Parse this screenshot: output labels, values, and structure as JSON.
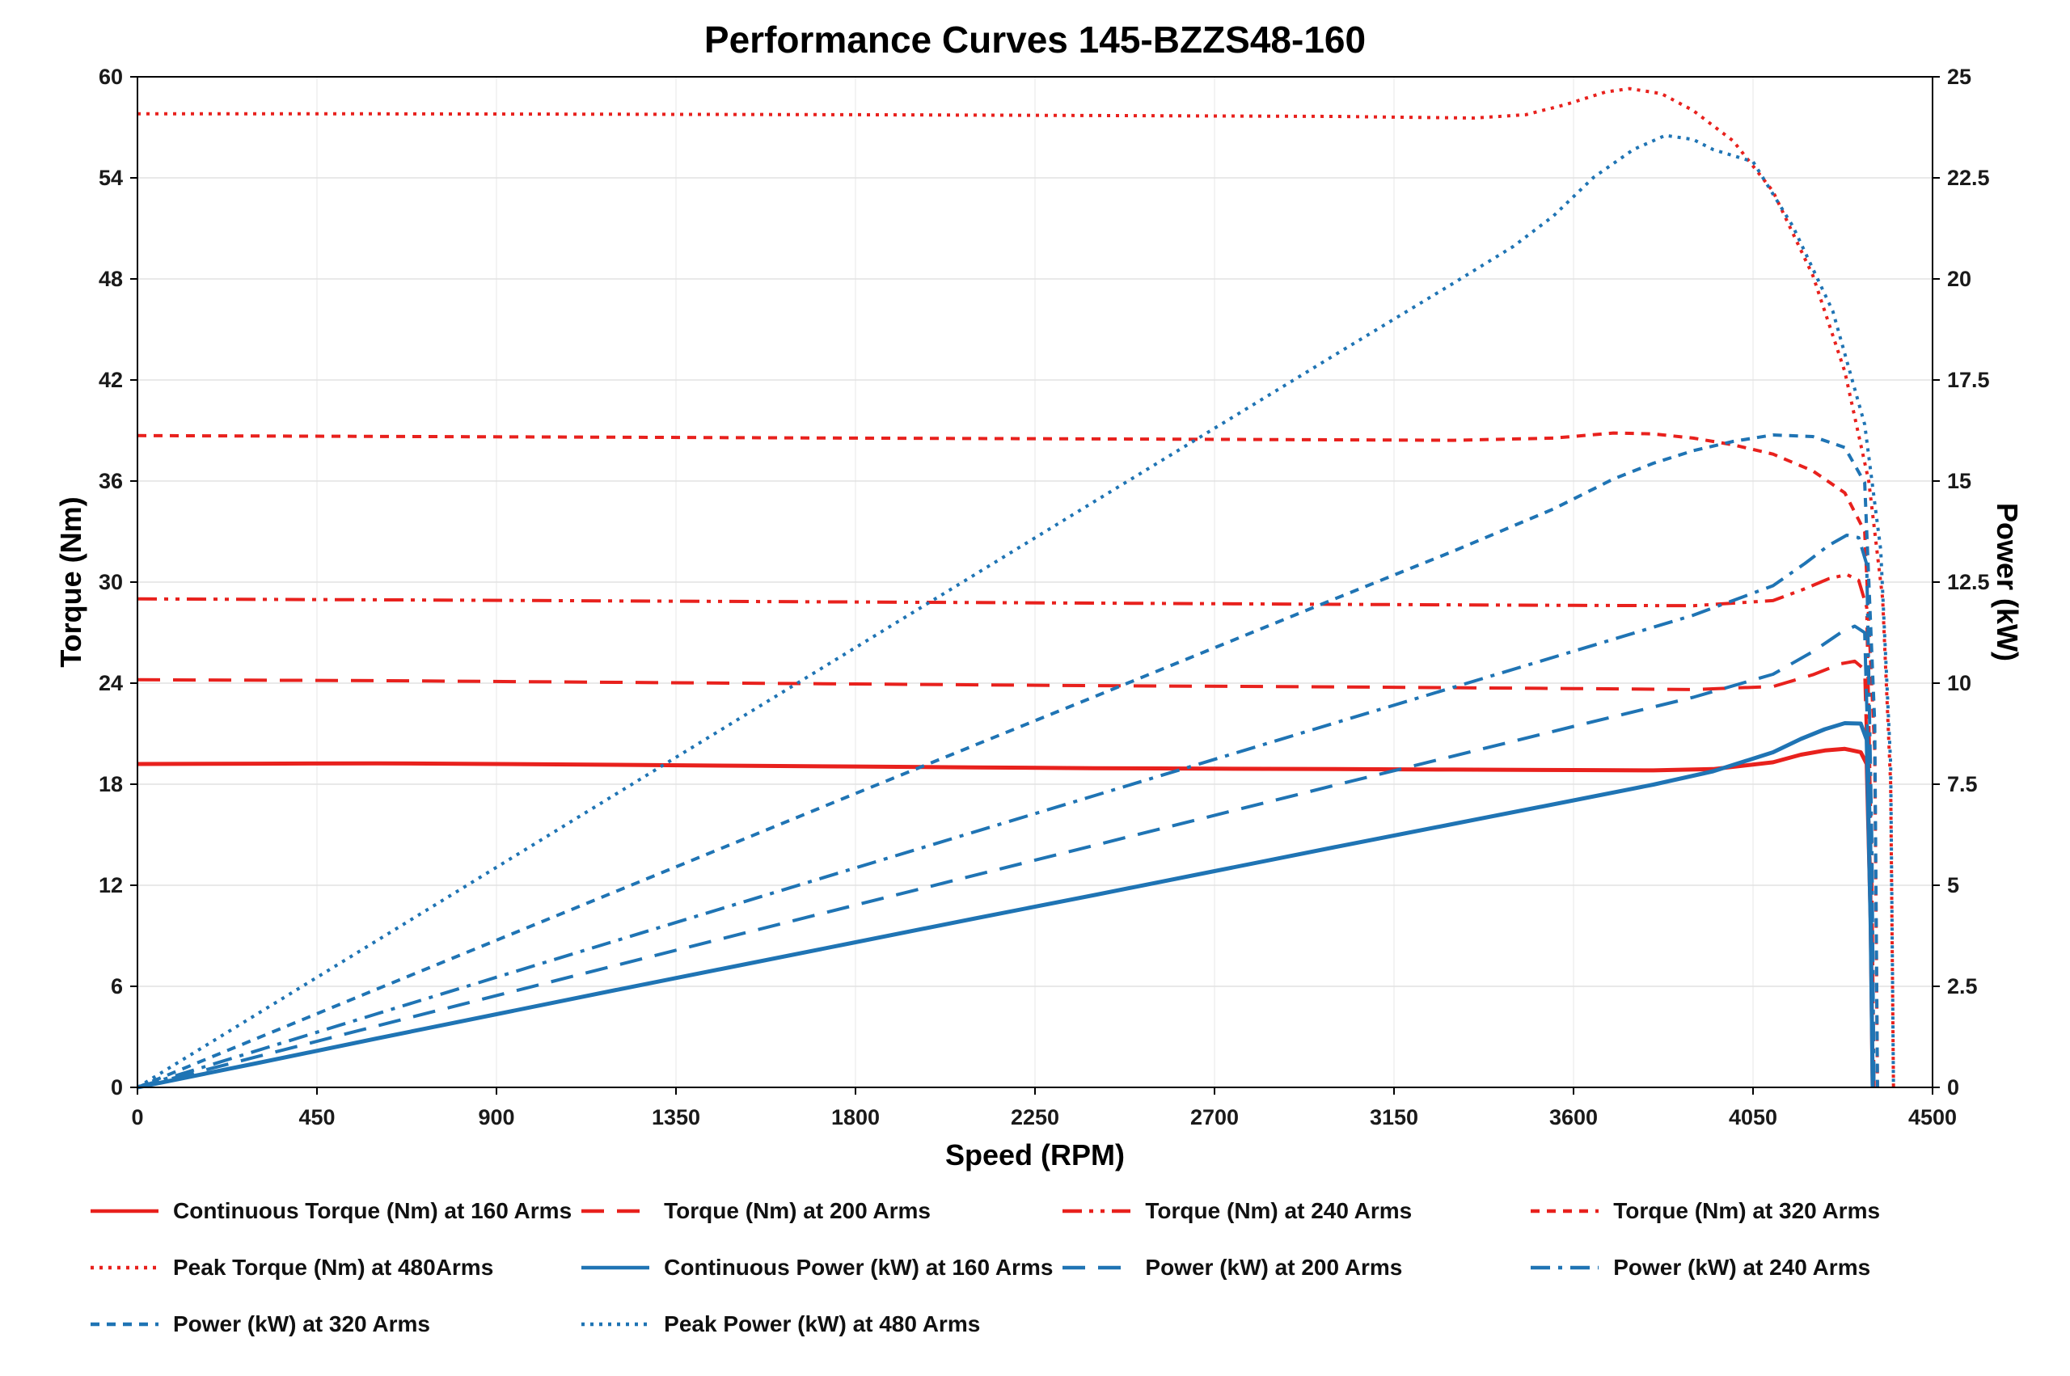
{
  "chart_data": {
    "type": "line",
    "title": "Performance Curves 145-BZZS48-160",
    "xlabel": "Speed (RPM)",
    "ylabel_left": "Torque (Nm)",
    "ylabel_right": "Power (kW)",
    "xlim": [
      0,
      4500
    ],
    "ylim_left": [
      0,
      60
    ],
    "ylim_right": [
      0,
      25
    ],
    "xticks": [
      0,
      450,
      900,
      1350,
      1800,
      2250,
      2700,
      3150,
      3600,
      4050,
      4500
    ],
    "yticks_left": [
      0,
      6,
      12,
      18,
      24,
      30,
      36,
      42,
      48,
      54,
      60
    ],
    "yticks_right": [
      0,
      2.5,
      5,
      7.5,
      10,
      12.5,
      15,
      17.5,
      20,
      22.5,
      25
    ],
    "grid": "on",
    "legend_position": "bottom",
    "style": {
      "torque_color": "#e8211d",
      "power_color": "#1f74b4",
      "hgrid_color": "#e2e2e2",
      "vgrid_color": "#efefef",
      "axis_color": "#000000"
    },
    "series": [
      {
        "id": "continuous-torque-160",
        "name": "Continuous Torque (Nm) at 160 Arms",
        "axis": "left",
        "color": "#e8211d",
        "dash": "",
        "width": 5,
        "points": [
          [
            0,
            19.2
          ],
          [
            300,
            19.22
          ],
          [
            600,
            19.24
          ],
          [
            900,
            19.2
          ],
          [
            1200,
            19.15
          ],
          [
            1500,
            19.1
          ],
          [
            1800,
            19.05
          ],
          [
            2100,
            19.0
          ],
          [
            2400,
            18.95
          ],
          [
            2700,
            18.92
          ],
          [
            3000,
            18.9
          ],
          [
            3300,
            18.87
          ],
          [
            3600,
            18.84
          ],
          [
            3800,
            18.82
          ],
          [
            3950,
            18.9
          ],
          [
            4100,
            19.3
          ],
          [
            4170,
            19.75
          ],
          [
            4230,
            20.0
          ],
          [
            4280,
            20.1
          ],
          [
            4320,
            19.9
          ],
          [
            4335,
            19.2
          ],
          [
            4345,
            10
          ],
          [
            4350,
            0
          ]
        ]
      },
      {
        "id": "torque-200",
        "name": "Torque (Nm) at 200 Arms",
        "axis": "left",
        "color": "#e8211d",
        "dash": "28 16",
        "width": 4,
        "points": [
          [
            0,
            24.2
          ],
          [
            600,
            24.15
          ],
          [
            1200,
            24.05
          ],
          [
            1800,
            23.95
          ],
          [
            2400,
            23.85
          ],
          [
            3000,
            23.78
          ],
          [
            3600,
            23.68
          ],
          [
            3900,
            23.62
          ],
          [
            4100,
            23.8
          ],
          [
            4200,
            24.5
          ],
          [
            4270,
            25.15
          ],
          [
            4305,
            25.3
          ],
          [
            4330,
            24.8
          ],
          [
            4345,
            12
          ],
          [
            4350,
            0
          ]
        ]
      },
      {
        "id": "torque-240",
        "name": "Torque (Nm) at 240 Arms",
        "axis": "left",
        "color": "#e8211d",
        "dash": "24 9 5 9 5 9",
        "width": 4,
        "points": [
          [
            0,
            29.0
          ],
          [
            600,
            28.95
          ],
          [
            1200,
            28.88
          ],
          [
            1800,
            28.82
          ],
          [
            2400,
            28.75
          ],
          [
            3000,
            28.68
          ],
          [
            3600,
            28.62
          ],
          [
            3900,
            28.6
          ],
          [
            4100,
            28.9
          ],
          [
            4180,
            29.6
          ],
          [
            4240,
            30.2
          ],
          [
            4285,
            30.45
          ],
          [
            4315,
            30.1
          ],
          [
            4335,
            28.5
          ],
          [
            4348,
            12
          ],
          [
            4353,
            0
          ]
        ]
      },
      {
        "id": "torque-320",
        "name": "Torque (Nm) at 320 Arms",
        "axis": "left",
        "color": "#e8211d",
        "dash": "11 9",
        "width": 4,
        "points": [
          [
            0,
            38.7
          ],
          [
            600,
            38.65
          ],
          [
            1200,
            38.6
          ],
          [
            1800,
            38.55
          ],
          [
            2400,
            38.5
          ],
          [
            3000,
            38.45
          ],
          [
            3300,
            38.42
          ],
          [
            3550,
            38.55
          ],
          [
            3700,
            38.85
          ],
          [
            3800,
            38.8
          ],
          [
            3900,
            38.55
          ],
          [
            4000,
            38.15
          ],
          [
            4100,
            37.6
          ],
          [
            4200,
            36.6
          ],
          [
            4280,
            35.3
          ],
          [
            4330,
            33
          ],
          [
            4355,
            20
          ],
          [
            4362,
            0
          ]
        ]
      },
      {
        "id": "peak-torque-480",
        "name": "Peak Torque (Nm) at 480Arms",
        "axis": "left",
        "color": "#e8211d",
        "dash": "4 7",
        "width": 4,
        "points": [
          [
            0,
            57.8
          ],
          [
            600,
            57.8
          ],
          [
            1200,
            57.78
          ],
          [
            1800,
            57.75
          ],
          [
            2400,
            57.7
          ],
          [
            3000,
            57.65
          ],
          [
            3350,
            57.55
          ],
          [
            3480,
            57.75
          ],
          [
            3580,
            58.35
          ],
          [
            3680,
            59.1
          ],
          [
            3740,
            59.3
          ],
          [
            3820,
            59.0
          ],
          [
            3900,
            58.0
          ],
          [
            4000,
            56.2
          ],
          [
            4100,
            53.2
          ],
          [
            4200,
            48.2
          ],
          [
            4280,
            42.5
          ],
          [
            4340,
            36
          ],
          [
            4375,
            29
          ],
          [
            4395,
            18
          ],
          [
            4402,
            0
          ]
        ]
      },
      {
        "id": "continuous-power-160",
        "name": "Continuous Power (kW) at 160 Arms",
        "axis": "right",
        "color": "#1f74b4",
        "dash": "",
        "width": 5,
        "points": [
          [
            0,
            0
          ],
          [
            300,
            0.6
          ],
          [
            600,
            1.21
          ],
          [
            900,
            1.81
          ],
          [
            1200,
            2.41
          ],
          [
            1500,
            3.0
          ],
          [
            1800,
            3.59
          ],
          [
            2100,
            4.18
          ],
          [
            2400,
            4.76
          ],
          [
            2700,
            5.35
          ],
          [
            3000,
            5.94
          ],
          [
            3300,
            6.52
          ],
          [
            3600,
            7.1
          ],
          [
            3800,
            7.49
          ],
          [
            3950,
            7.82
          ],
          [
            4100,
            8.29
          ],
          [
            4170,
            8.62
          ],
          [
            4230,
            8.86
          ],
          [
            4280,
            9.01
          ],
          [
            4320,
            9.0
          ],
          [
            4335,
            8.6
          ],
          [
            4345,
            4
          ],
          [
            4350,
            0
          ]
        ]
      },
      {
        "id": "power-200",
        "name": "Power (kW) at 200 Arms",
        "axis": "right",
        "color": "#1f74b4",
        "dash": "28 16",
        "width": 4,
        "points": [
          [
            0,
            0
          ],
          [
            600,
            1.52
          ],
          [
            1200,
            3.02
          ],
          [
            1800,
            4.51
          ],
          [
            2400,
            5.99
          ],
          [
            3000,
            7.47
          ],
          [
            3600,
            8.93
          ],
          [
            3900,
            9.65
          ],
          [
            4100,
            10.22
          ],
          [
            4200,
            10.78
          ],
          [
            4270,
            11.25
          ],
          [
            4305,
            11.41
          ],
          [
            4330,
            11.25
          ],
          [
            4345,
            6
          ],
          [
            4350,
            0
          ]
        ]
      },
      {
        "id": "power-240",
        "name": "Power (kW) at 240 Arms",
        "axis": "right",
        "color": "#1f74b4",
        "dash": "24 10 5 10",
        "width": 4,
        "points": [
          [
            0,
            0
          ],
          [
            600,
            1.82
          ],
          [
            1200,
            3.63
          ],
          [
            1800,
            5.43
          ],
          [
            2400,
            7.22
          ],
          [
            3000,
            9.01
          ],
          [
            3600,
            10.79
          ],
          [
            3900,
            11.68
          ],
          [
            4100,
            12.41
          ],
          [
            4180,
            12.96
          ],
          [
            4240,
            13.41
          ],
          [
            4285,
            13.66
          ],
          [
            4315,
            13.6
          ],
          [
            4335,
            12.94
          ],
          [
            4348,
            6
          ],
          [
            4353,
            0
          ]
        ]
      },
      {
        "id": "power-320",
        "name": "Power (kW) at 320 Arms",
        "axis": "right",
        "color": "#1f74b4",
        "dash": "11 9",
        "width": 4,
        "points": [
          [
            0,
            0
          ],
          [
            600,
            2.43
          ],
          [
            1200,
            4.85
          ],
          [
            1800,
            7.27
          ],
          [
            2400,
            9.67
          ],
          [
            3000,
            12.08
          ],
          [
            3300,
            13.27
          ],
          [
            3550,
            14.31
          ],
          [
            3700,
            15.05
          ],
          [
            3800,
            15.44
          ],
          [
            3900,
            15.75
          ],
          [
            4000,
            15.98
          ],
          [
            4100,
            16.14
          ],
          [
            4200,
            16.1
          ],
          [
            4280,
            15.83
          ],
          [
            4330,
            14.96
          ],
          [
            4355,
            9
          ],
          [
            4362,
            0
          ]
        ]
      },
      {
        "id": "peak-power-480",
        "name": "Peak Power (kW) at 480 Arms",
        "axis": "right",
        "color": "#1f74b4",
        "dash": "4 7",
        "width": 4,
        "points": [
          [
            0,
            0
          ],
          [
            600,
            3.63
          ],
          [
            1200,
            7.26
          ],
          [
            1800,
            10.88
          ],
          [
            2400,
            14.5
          ],
          [
            3000,
            18.11
          ],
          [
            3300,
            19.9
          ],
          [
            3450,
            20.81
          ],
          [
            3550,
            21.56
          ],
          [
            3650,
            22.51
          ],
          [
            3750,
            23.2
          ],
          [
            3830,
            23.55
          ],
          [
            3900,
            23.45
          ],
          [
            3950,
            23.2
          ],
          [
            4050,
            22.9
          ],
          [
            4150,
            21.3
          ],
          [
            4250,
            19.2
          ],
          [
            4330,
            16.4
          ],
          [
            4370,
            13.3
          ],
          [
            4395,
            8
          ],
          [
            4402,
            0
          ]
        ]
      }
    ]
  }
}
